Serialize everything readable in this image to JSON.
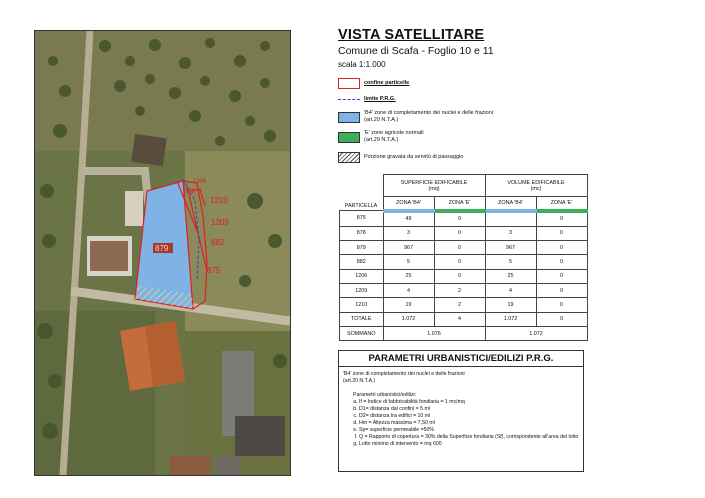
{
  "header": {
    "title": "VISTA SATELLITARE",
    "subtitle": "Comune di Scafa - Foglio 10 e 11",
    "scale": "scala 1:1.000"
  },
  "legend": {
    "items": [
      {
        "label": "confine particelle",
        "color": "#e02020"
      },
      {
        "label": "limite P.R.G.",
        "color": "#3344cc"
      },
      {
        "label": "'B4' zone di completamento dei nuclei e delle frazioni",
        "label2": "(art.20 N.T.A.)",
        "color": "#7fb2e5"
      },
      {
        "label": "'E' zone agricole normali",
        "label2": "(art.29 N.T.A.)",
        "color": "#3fae5a"
      },
      {
        "label": "Porzione gravata da servitù di passaggio"
      }
    ]
  },
  "table": {
    "row_header": "PARTICELLA",
    "group1": {
      "title": "SUPERFICIE EDIFICABILE",
      "unit": "(mq)"
    },
    "group2": {
      "title": "VOLUME EDIFICABILE",
      "unit": "(mc)"
    },
    "col_b4": "ZONA 'B4'",
    "col_e": "ZONA 'E'",
    "rows": [
      {
        "p": "875",
        "s_b4": "49",
        "s_e": "0",
        "v_b4": "",
        "v_e": "0"
      },
      {
        "p": "878",
        "s_b4": "3",
        "s_e": "0",
        "v_b4": "3",
        "v_e": "0"
      },
      {
        "p": "879",
        "s_b4": "967",
        "s_e": "0",
        "v_b4": "967",
        "v_e": "0"
      },
      {
        "p": "882",
        "s_b4": "5",
        "s_e": "0",
        "v_b4": "5",
        "v_e": "0"
      },
      {
        "p": "1206",
        "s_b4": "25",
        "s_e": "0",
        "v_b4": "25",
        "v_e": "0"
      },
      {
        "p": "1209",
        "s_b4": "4",
        "s_e": "2",
        "v_b4": "4",
        "v_e": "0"
      },
      {
        "p": "1210",
        "s_b4": "19",
        "s_e": "2",
        "v_b4": "19",
        "v_e": "0"
      },
      {
        "p": "TOTALE",
        "s_b4": "1.072",
        "s_e": "4",
        "v_b4": "1.072",
        "v_e": "0"
      }
    ],
    "sum_label": "SOMMANO",
    "sum_s": "1.076",
    "sum_v": "1.072"
  },
  "params": {
    "title": "PARAMETRI URBANISTICI/EDILIZI P.R.G.",
    "zone_line1": "'B4' zone di completamento dei nuclei e delle frazioni",
    "zone_line2": "(art.20 N.T.A.)",
    "intro": "Parametri urbanistici/edilizi:",
    "items": [
      "If = Indice di fabbricabilità fondiaria = 1 mc/mq",
      "D1= distanza dai confini = 5 ml",
      "D2= distanza tra edifici = 10 ml",
      "Hm = Altezza massima = 7,50 ml",
      "Sp= superficie permeabile =50%",
      "Q = Rapporto di copertura = 30% della Superficie fondiaria (Sf), corrispondente all'area del lotto",
      "Lotto minimo di intervento = mq 600"
    ]
  },
  "map_labels": {
    "p879": "879",
    "p875": "875",
    "p878": "878",
    "p882": "882",
    "p1206": "1206",
    "p1209": "1209",
    "p1210": "1210"
  }
}
